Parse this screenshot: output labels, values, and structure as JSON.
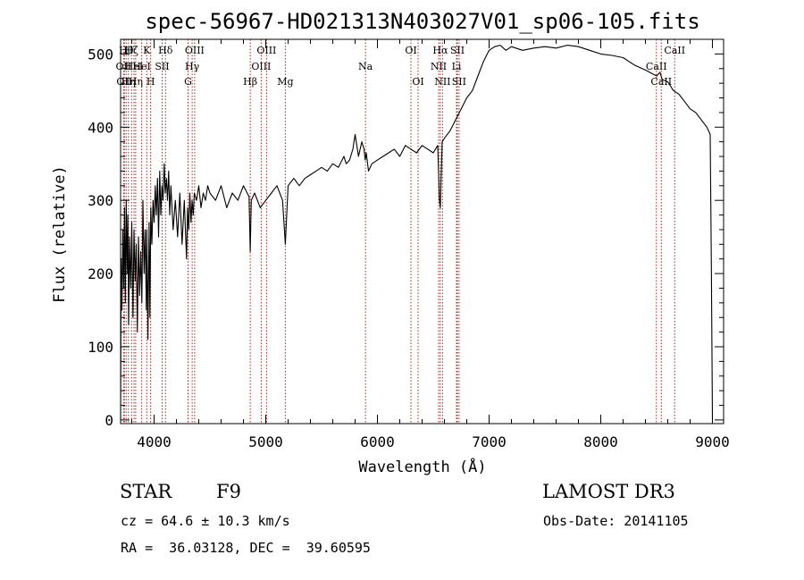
{
  "chart_data": {
    "type": "line",
    "title": "spec-56967-HD021313N403027V01_sp06-105.fits",
    "xlabel": "Wavelength (Å)",
    "ylabel": "Flux (relative)",
    "xlim": [
      3700,
      9100
    ],
    "ylim": [
      -5,
      520
    ],
    "xticks": [
      4000,
      5000,
      6000,
      7000,
      8000,
      9000
    ],
    "yticks": [
      0,
      100,
      200,
      300,
      400,
      500
    ],
    "grid": false,
    "line_color": "#000000",
    "marker_color": "#b22222",
    "series": [
      {
        "x": [
          3700,
          3705,
          3712,
          3720,
          3728,
          3735,
          3742,
          3750,
          3758,
          3765,
          3772,
          3780,
          3790,
          3800,
          3810,
          3820,
          3830,
          3840,
          3850,
          3860,
          3870,
          3880,
          3890,
          3900,
          3910,
          3920,
          3930,
          3935,
          3945,
          3955,
          3962,
          3970,
          3980,
          3990,
          4000,
          4010,
          4020,
          4030,
          4040,
          4050,
          4060,
          4070,
          4080,
          4090,
          4100,
          4110,
          4120,
          4130,
          4140,
          4150,
          4170,
          4190,
          4210,
          4230,
          4250,
          4270,
          4290,
          4300,
          4310,
          4320,
          4330,
          4340,
          4350,
          4360,
          4380,
          4400,
          4420,
          4440,
          4460,
          4480,
          4500,
          4550,
          4600,
          4650,
          4700,
          4750,
          4800,
          4850,
          4861,
          4870,
          4900,
          4950,
          5000,
          5050,
          5100,
          5150,
          5175,
          5200,
          5250,
          5300,
          5350,
          5400,
          5450,
          5500,
          5550,
          5600,
          5650,
          5700,
          5720,
          5750,
          5780,
          5800,
          5830,
          5860,
          5880,
          5890,
          5900,
          5920,
          5950,
          6000,
          6050,
          6100,
          6150,
          6200,
          6250,
          6300,
          6350,
          6400,
          6450,
          6500,
          6540,
          6555,
          6563,
          6570,
          6580,
          6600,
          6650,
          6700,
          6750,
          6800,
          6850,
          6900,
          6950,
          7000,
          7050,
          7100,
          7150,
          7200,
          7300,
          7400,
          7500,
          7600,
          7700,
          7800,
          7900,
          8000,
          8100,
          8200,
          8300,
          8400,
          8500,
          8530,
          8550,
          8600,
          8650,
          8700,
          8750,
          8800,
          8850,
          8900,
          8950,
          8980,
          8990,
          9000
        ],
        "y": [
          0,
          220,
          150,
          260,
          180,
          290,
          160,
          300,
          200,
          280,
          130,
          250,
          180,
          270,
          140,
          260,
          190,
          240,
          120,
          250,
          170,
          230,
          160,
          300,
          200,
          260,
          150,
          260,
          110,
          270,
          140,
          290,
          240,
          300,
          270,
          320,
          280,
          330,
          250,
          340,
          280,
          320,
          300,
          350,
          310,
          330,
          300,
          340,
          280,
          320,
          260,
          300,
          250,
          310,
          240,
          300,
          220,
          290,
          260,
          310,
          270,
          300,
          280,
          310,
          300,
          320,
          290,
          310,
          300,
          320,
          310,
          300,
          320,
          290,
          310,
          300,
          320,
          305,
          230,
          300,
          310,
          290,
          300,
          310,
          320,
          300,
          240,
          320,
          330,
          320,
          330,
          335,
          340,
          345,
          340,
          350,
          345,
          360,
          350,
          355,
          370,
          390,
          360,
          380,
          370,
          355,
          365,
          340,
          350,
          355,
          360,
          365,
          370,
          360,
          375,
          370,
          365,
          375,
          370,
          365,
          375,
          300,
          290,
          330,
          380,
          385,
          395,
          410,
          425,
          440,
          450,
          470,
          490,
          505,
          510,
          512,
          505,
          510,
          505,
          508,
          510,
          508,
          512,
          510,
          505,
          500,
          498,
          495,
          485,
          478,
          470,
          475,
          465,
          462,
          450,
          445,
          435,
          425,
          420,
          410,
          400,
          390,
          210,
          0
        ]
      }
    ],
    "line_markers": [
      {
        "x": 3727,
        "label": "OII",
        "row": 1
      },
      {
        "x": 3734,
        "label": "OII",
        "row": 2
      },
      {
        "x": 3750,
        "label": "Hθ",
        "row": 0
      },
      {
        "x": 3770,
        "label": "Hη",
        "row": 2
      },
      {
        "x": 3798,
        "label": "Hζ",
        "row": 0
      },
      {
        "x": 3820,
        "label": "HeI",
        "row": 1
      },
      {
        "x": 3835,
        "label": "Hη",
        "row": 2
      },
      {
        "x": 3889,
        "label": "HeI",
        "row": 1
      },
      {
        "x": 3934,
        "label": "K",
        "row": 0
      },
      {
        "x": 3969,
        "label": "H",
        "row": 2
      },
      {
        "x": 4072,
        "label": "SII",
        "row": 1
      },
      {
        "x": 4102,
        "label": "Hδ",
        "row": 0
      },
      {
        "x": 4304,
        "label": "G",
        "row": 2
      },
      {
        "x": 4341,
        "label": "Hγ",
        "row": 1
      },
      {
        "x": 4363,
        "label": "OIII",
        "row": 0
      },
      {
        "x": 4861,
        "label": "Hβ",
        "row": 2
      },
      {
        "x": 4959,
        "label": "OIII",
        "row": 1
      },
      {
        "x": 5007,
        "label": "OIII",
        "row": 0
      },
      {
        "x": 5175,
        "label": "Mg",
        "row": 2
      },
      {
        "x": 5893,
        "label": "Na",
        "row": 1
      },
      {
        "x": 6300,
        "label": "OI",
        "row": 0
      },
      {
        "x": 6364,
        "label": "OI",
        "row": 2
      },
      {
        "x": 6548,
        "label": "NII",
        "row": 1
      },
      {
        "x": 6563,
        "label": "Hα",
        "row": 0
      },
      {
        "x": 6583,
        "label": "NII",
        "row": 2
      },
      {
        "x": 6708,
        "label": "Li",
        "row": 1
      },
      {
        "x": 6716,
        "label": "SII",
        "row": 0
      },
      {
        "x": 6731,
        "label": "SII",
        "row": 2
      },
      {
        "x": 8498,
        "label": "CaII",
        "row": 1
      },
      {
        "x": 8542,
        "label": "CaII",
        "row": 2
      },
      {
        "x": 8662,
        "label": "CaII",
        "row": 0
      }
    ]
  },
  "info": {
    "object_class": "STAR",
    "subclass": "F9",
    "survey": "LAMOST DR3",
    "redshift": "cz = 64.6 ± 10.3 km/s",
    "obs_date": "Obs-Date: 20141105",
    "coords": "RA =  36.03128, DEC =  39.60595"
  }
}
